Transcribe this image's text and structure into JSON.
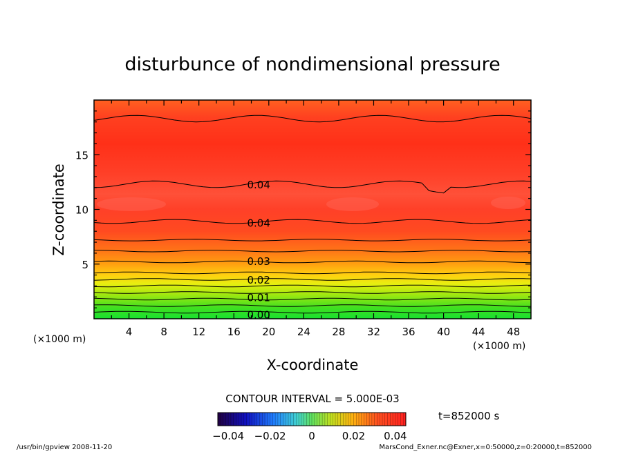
{
  "chart_data": {
    "type": "heatmap",
    "title": "disturbunce of nondimensional pressure",
    "xlabel": "X-coordinate",
    "ylabel": "Z-coordinate",
    "x_unit": "(×1000 m)",
    "y_unit": "(×1000 m)",
    "xlim": [
      0,
      50
    ],
    "ylim": [
      0,
      20
    ],
    "x_ticks": [
      "4",
      "8",
      "12",
      "16",
      "20",
      "24",
      "28",
      "32",
      "36",
      "40",
      "44",
      "48"
    ],
    "y_ticks": [
      "5",
      "10",
      "15"
    ],
    "contour_interval": "CONTOUR INTERVAL = 5.000E-03",
    "time_label": "t=852000 s",
    "contour_labels": [
      {
        "text": "0.00",
        "x": 17.5,
        "z": 0.4
      },
      {
        "text": "0.01",
        "x": 17.5,
        "z": 2.0
      },
      {
        "text": "0.02",
        "x": 17.5,
        "z": 3.6
      },
      {
        "text": "0.03",
        "x": 17.5,
        "z": 5.3
      },
      {
        "text": "0.04",
        "x": 17.5,
        "z": 8.8
      },
      {
        "text": "0.04",
        "x": 17.5,
        "z": 12.3
      }
    ],
    "contour_levels_z": [
      0.6,
      1.2,
      1.8,
      2.4,
      3.0,
      3.6,
      4.2,
      5.2,
      6.2,
      7.2,
      8.9,
      12.3,
      18.3
    ],
    "colorbar": {
      "min": -0.045,
      "max": 0.045,
      "tick_labels": [
        "−0.04",
        "−0.02",
        "0",
        "0.02",
        "0.04"
      ],
      "tick_values": [
        -0.04,
        -0.02,
        0,
        0.02,
        0.04
      ]
    },
    "colors": {
      "field_top": "#ff3010",
      "field_core": "#ff4a28",
      "field_mid": "#ff7a10",
      "field_yellow": "#e8ee10",
      "field_green": "#20e028"
    }
  },
  "footer": {
    "left": "/usr/bin/gpview  2008-11-20",
    "right": "MarsCond_Exner.nc@Exner,x=0:50000,z=0:20000,t=852000"
  }
}
